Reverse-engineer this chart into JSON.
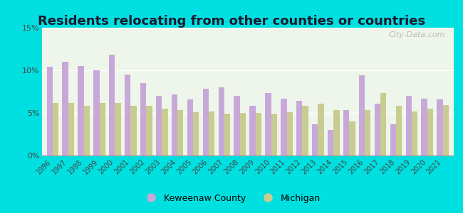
{
  "title": "Residents relocating from other counties or countries",
  "years": [
    1996,
    1997,
    1998,
    1999,
    2000,
    2001,
    2002,
    2003,
    2004,
    2005,
    2006,
    2007,
    2008,
    2009,
    2010,
    2011,
    2012,
    2013,
    2014,
    2015,
    2016,
    2017,
    2018,
    2019,
    2020,
    2021
  ],
  "keweenaw": [
    10.4,
    11.0,
    10.5,
    10.0,
    11.8,
    9.5,
    8.5,
    7.0,
    7.2,
    6.6,
    7.8,
    8.0,
    7.0,
    5.8,
    7.3,
    6.7,
    6.4,
    3.7,
    3.0,
    5.3,
    9.4,
    6.1,
    3.7,
    7.0,
    6.7,
    6.6
  ],
  "michigan": [
    6.2,
    6.2,
    5.8,
    6.2,
    6.2,
    5.8,
    5.8,
    5.5,
    5.3,
    5.1,
    5.2,
    4.9,
    5.0,
    5.0,
    4.9,
    5.1,
    5.8,
    6.1,
    5.3,
    4.0,
    5.3,
    7.3,
    5.8,
    5.2,
    5.5,
    5.9
  ],
  "keweenaw_color": "#c8a8d8",
  "michigan_color": "#c8cc90",
  "plot_bg_top": "#f0f5e8",
  "plot_bg_bottom": "#e0f0e0",
  "outer_background": "#00e0e0",
  "ylim": [
    0,
    15
  ],
  "yticks": [
    0,
    5,
    10,
    15
  ],
  "ytick_labels": [
    "0%",
    "5%",
    "10%",
    "15%"
  ],
  "title_fontsize": 13,
  "legend_keweenaw": "Keweenaw County",
  "legend_michigan": "Michigan"
}
